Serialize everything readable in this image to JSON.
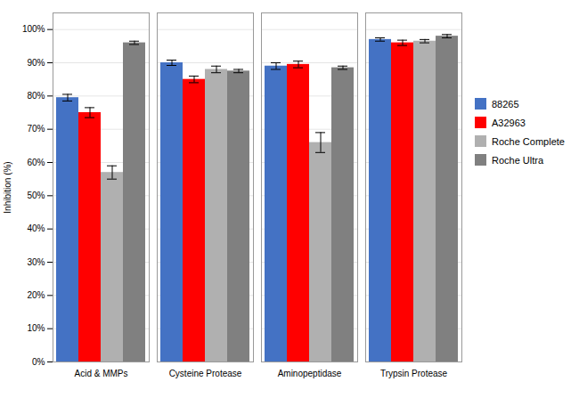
{
  "chart_data": {
    "type": "bar",
    "categories": [
      "Acid & MMPs",
      "Cysteine Protease",
      "Aminopeptidase",
      "Trypsin Protease"
    ],
    "series": [
      {
        "name": "88265",
        "color": "#4472C4",
        "values": [
          79.5,
          90.0,
          89.0,
          97.0
        ],
        "errors": [
          1.0,
          0.8,
          1.0,
          0.5
        ]
      },
      {
        "name": "A32963",
        "color": "#FF0000",
        "values": [
          75.0,
          85.0,
          89.5,
          96.0
        ],
        "errors": [
          1.5,
          1.0,
          1.0,
          0.8
        ]
      },
      {
        "name": "Roche Complete",
        "color": "#B0B0B0",
        "values": [
          57.0,
          88.0,
          66.0,
          96.5
        ],
        "errors": [
          2.0,
          1.0,
          3.0,
          0.5
        ]
      },
      {
        "name": "Roche Ultra",
        "color": "#808080",
        "values": [
          96.0,
          87.5,
          88.5,
          98.0
        ],
        "errors": [
          0.5,
          0.5,
          0.5,
          0.5
        ]
      }
    ],
    "ylabel": "Inhibition (%)",
    "ylim": [
      0,
      105
    ],
    "yticks": [
      {
        "value": 0,
        "label": "0%"
      },
      {
        "value": 10,
        "label": "10%"
      },
      {
        "value": 20,
        "label": "20%"
      },
      {
        "value": 30,
        "label": "30%"
      },
      {
        "value": 40,
        "label": "40%"
      },
      {
        "value": 50,
        "label": "50%"
      },
      {
        "value": 60,
        "label": "60%"
      },
      {
        "value": 70,
        "label": "70%"
      },
      {
        "value": 80,
        "label": "80%"
      },
      {
        "value": 90,
        "label": "90%"
      },
      {
        "value": 100,
        "label": "100%"
      }
    ],
    "grid": true,
    "legend": "right"
  }
}
